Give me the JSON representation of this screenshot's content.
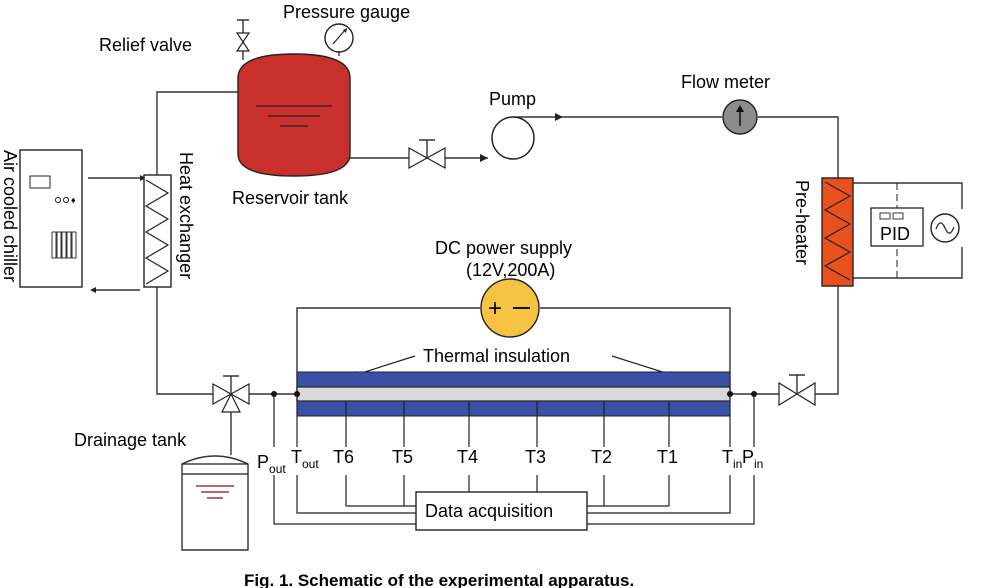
{
  "labels": {
    "pressure_gauge": "Pressure gauge",
    "relief_valve": "Relief valve",
    "pump": "Pump",
    "flow_meter": "Flow meter",
    "reservoir_tank": "Reservoir tank",
    "air_cooled_chiller": "Air cooled chiller",
    "heat_exchanger": "Heat exchanger",
    "pre_heater": "Pre-heater",
    "pid": "PID",
    "dc_power_supply": "DC power supply",
    "dc_power_rating": "(12V,200A)",
    "thermal_insulation": "Thermal insulation",
    "drainage_tank": "Drainage tank",
    "data_acquisition": "Data acquisition",
    "caption": "Fig. 1. Schematic of the experimental apparatus."
  },
  "sensors": {
    "p_out_main": "P",
    "p_out_sub": "out",
    "t_out_main": "T",
    "t_out_sub": "out",
    "t6": "T6",
    "t5": "T5",
    "t4": "T4",
    "t3": "T3",
    "t2": "T2",
    "t1": "T1",
    "t_in_main": "T",
    "t_in_sub": "in",
    "p_in_main": "P",
    "p_in_sub": "in"
  },
  "colors": {
    "reservoir": "#c9302c",
    "preheater": "#e8501e",
    "insulation": "#3a4fa6",
    "test_tube": "#d9d9d9",
    "power_supply": "#f5c242",
    "flow_meter": "#8c8c8c",
    "drainage_water": "#a33a32"
  }
}
